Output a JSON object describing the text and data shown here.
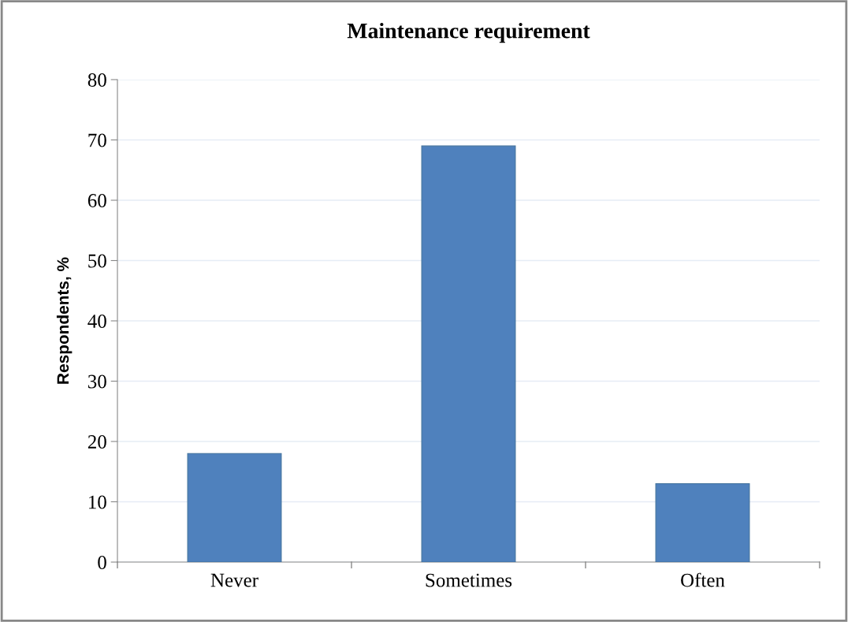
{
  "chart_data": {
    "type": "bar",
    "title": "Maintenance requirement",
    "ylabel": "Respondents, %",
    "categories": [
      "Never",
      "Sometimes",
      "Often"
    ],
    "values": [
      18,
      69,
      13
    ],
    "color": "#4f81bd",
    "ylim": [
      0,
      80
    ],
    "yticks": [
      0,
      10,
      20,
      30,
      40,
      50,
      60,
      70,
      80
    ],
    "grid": "y",
    "legend": false
  }
}
